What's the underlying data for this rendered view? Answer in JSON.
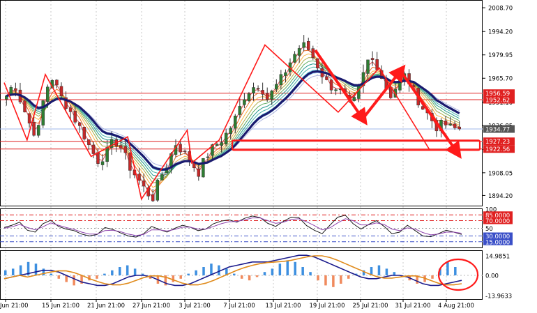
{
  "chart_data": [
    {
      "type": "candlestick",
      "panel": "price",
      "title": "",
      "colors": {
        "bull": "#2e7d32",
        "bear": "#c62828",
        "ma_thick": "#1a1a6e",
        "annotation": "#ff0000"
      },
      "y_ticks": [
        "2008.70",
        "1994.20",
        "1979.95",
        "1965.70",
        "1951.10",
        "1936.85",
        "1922.35",
        "1908.05",
        "1894.20"
      ],
      "price_labels": [
        {
          "text": "1956.59",
          "color": "#e02020"
        },
        {
          "text": "1952.62",
          "color": "#e02020"
        },
        {
          "text": "1934.77",
          "color": "#555555"
        },
        {
          "text": "1927.23",
          "color": "#e02020"
        },
        {
          "text": "1922.56",
          "color": "#e02020"
        }
      ],
      "horizontal_levels": [
        1956.59,
        1952.62,
        1934.77,
        1927.23,
        1922.56
      ],
      "close_series": [
        1955,
        1963,
        1950,
        1938,
        1930,
        1958,
        1966,
        1955,
        1948,
        1940,
        1932,
        1922,
        1915,
        1920,
        1928,
        1923,
        1912,
        1905,
        1898,
        1892,
        1905,
        1914,
        1926,
        1921,
        1915,
        1908,
        1918,
        1924,
        1928,
        1934,
        1943,
        1955,
        1960,
        1962,
        1953,
        1960,
        1967,
        1976,
        1984,
        1986,
        1978,
        1969,
        1961,
        1960,
        1955,
        1948,
        1960,
        1976,
        1977,
        1965,
        1955,
        1962,
        1968,
        1958,
        1949,
        1943,
        1936,
        1938,
        1935,
        1934.77
      ],
      "zigzag_points": [
        [
          0,
          1963
        ],
        [
          5,
          1928
        ],
        [
          9,
          1968
        ],
        [
          19,
          1918
        ],
        [
          27,
          1930
        ],
        [
          30,
          1892
        ],
        [
          40,
          1934
        ],
        [
          41,
          1914
        ],
        [
          47,
          1928
        ],
        [
          57,
          1986
        ],
        [
          73,
          1945
        ],
        [
          82,
          1972
        ],
        [
          93,
          1922
        ]
      ]
    },
    {
      "type": "line",
      "panel": "oscillator",
      "y_ticks": [
        "100",
        "85.0000",
        "70.0000",
        "50",
        "30.0000",
        "15.0000"
      ],
      "levels": [
        85,
        70,
        50,
        30,
        15
      ],
      "series": [
        {
          "values": [
            52,
            58,
            66,
            45,
            40,
            62,
            71,
            55,
            48,
            44,
            35,
            30,
            34,
            52,
            47,
            38,
            30,
            27,
            36,
            55,
            47,
            40,
            50,
            58,
            53,
            44,
            48,
            62,
            69,
            72,
            66,
            76,
            82,
            78,
            63,
            55,
            68,
            79,
            78,
            57,
            45,
            36,
            58,
            79,
            84,
            62,
            48,
            60,
            70,
            55,
            36,
            40,
            58,
            44,
            30,
            28,
            36,
            45,
            40,
            34
          ]
        },
        {
          "values": [
            50,
            54,
            60,
            52,
            46,
            54,
            64,
            58,
            52,
            47,
            40,
            35,
            35,
            44,
            45,
            41,
            35,
            31,
            34,
            46,
            46,
            43,
            47,
            53,
            53,
            48,
            48,
            55,
            62,
            67,
            68,
            72,
            77,
            77,
            70,
            63,
            66,
            73,
            75,
            67,
            57,
            46,
            51,
            64,
            75,
            70,
            59,
            59,
            64,
            60,
            48,
            44,
            51,
            48,
            39,
            33,
            35,
            40,
            40,
            37
          ]
        }
      ]
    },
    {
      "type": "bar",
      "panel": "macd",
      "y_ticks": [
        "14.9851",
        "0.00",
        "-13.9633"
      ],
      "histogram": [
        3,
        4,
        6,
        8,
        7,
        4,
        1,
        -2,
        -4,
        -6,
        -5,
        -3,
        -2,
        1,
        3,
        5,
        6,
        4,
        1,
        -2,
        -5,
        -6,
        -4,
        -2,
        1,
        3,
        5,
        7,
        6,
        4,
        1,
        -2,
        -3,
        -1,
        2,
        4,
        7,
        9,
        8,
        5,
        2,
        -3,
        -6,
        -7,
        -5,
        -2,
        1,
        3,
        5,
        6,
        4,
        2,
        -1,
        -3,
        -5,
        -4,
        -2,
        4,
        8,
        5
      ],
      "signal": [
        -2,
        -1,
        0,
        1,
        2,
        3,
        3,
        2,
        0,
        -2,
        -4,
        -5,
        -6,
        -6,
        -5,
        -3,
        -1,
        0,
        0,
        -1,
        -3,
        -5,
        -6,
        -6,
        -5,
        -3,
        -1,
        1,
        3,
        5,
        6,
        7,
        8,
        8,
        8,
        9,
        10,
        11,
        12,
        12,
        11,
        9,
        7,
        5,
        3,
        1,
        -1,
        -2,
        -2,
        -1,
        0,
        0,
        -1,
        -3,
        -5,
        -6,
        -6,
        -5,
        -4,
        -3
      ]
    }
  ],
  "x_axis": {
    "tick_labels": [
      "11 Jun 21:00",
      "15 Jun 21:00",
      "21 Jun 21:00",
      "27 Jun 21:00",
      "3 Jul 21:00",
      "7 Jul 21:00",
      "13 Jul 21:00",
      "19 Jul 21:00",
      "25 Jul 21:00",
      "31 Jul 21:00",
      "4 Aug 21:00"
    ]
  }
}
